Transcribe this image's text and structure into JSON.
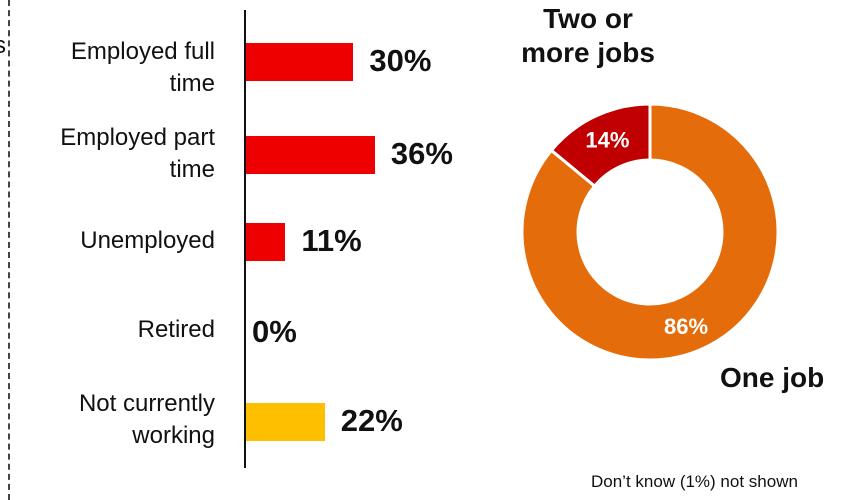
{
  "chart_data": [
    {
      "type": "bar",
      "orientation": "horizontal",
      "categories": [
        "Employed full\ntime",
        "Employed part\ntime",
        "Unemployed",
        "Retired",
        "Not currently\nworking"
      ],
      "values": [
        30,
        36,
        11,
        0,
        22
      ],
      "value_labels": [
        "30%",
        "36%",
        "11%",
        "0%",
        "22%"
      ],
      "colors": [
        "#ee0000",
        "#ee0000",
        "#ee0000",
        "#ee0000",
        "#fdbf00"
      ],
      "xlim": [
        0,
        100
      ],
      "title": "",
      "xlabel": "",
      "ylabel": ""
    },
    {
      "type": "pie",
      "style": "donut",
      "slices": [
        {
          "label": "One job",
          "value": 86,
          "value_label": "86%",
          "color": "#e46c0a"
        },
        {
          "label": "Two or\nmore jobs",
          "value": 14,
          "value_label": "14%",
          "color": "#c00000"
        }
      ],
      "footnote": "Don’t know (1%) not shown"
    }
  ]
}
